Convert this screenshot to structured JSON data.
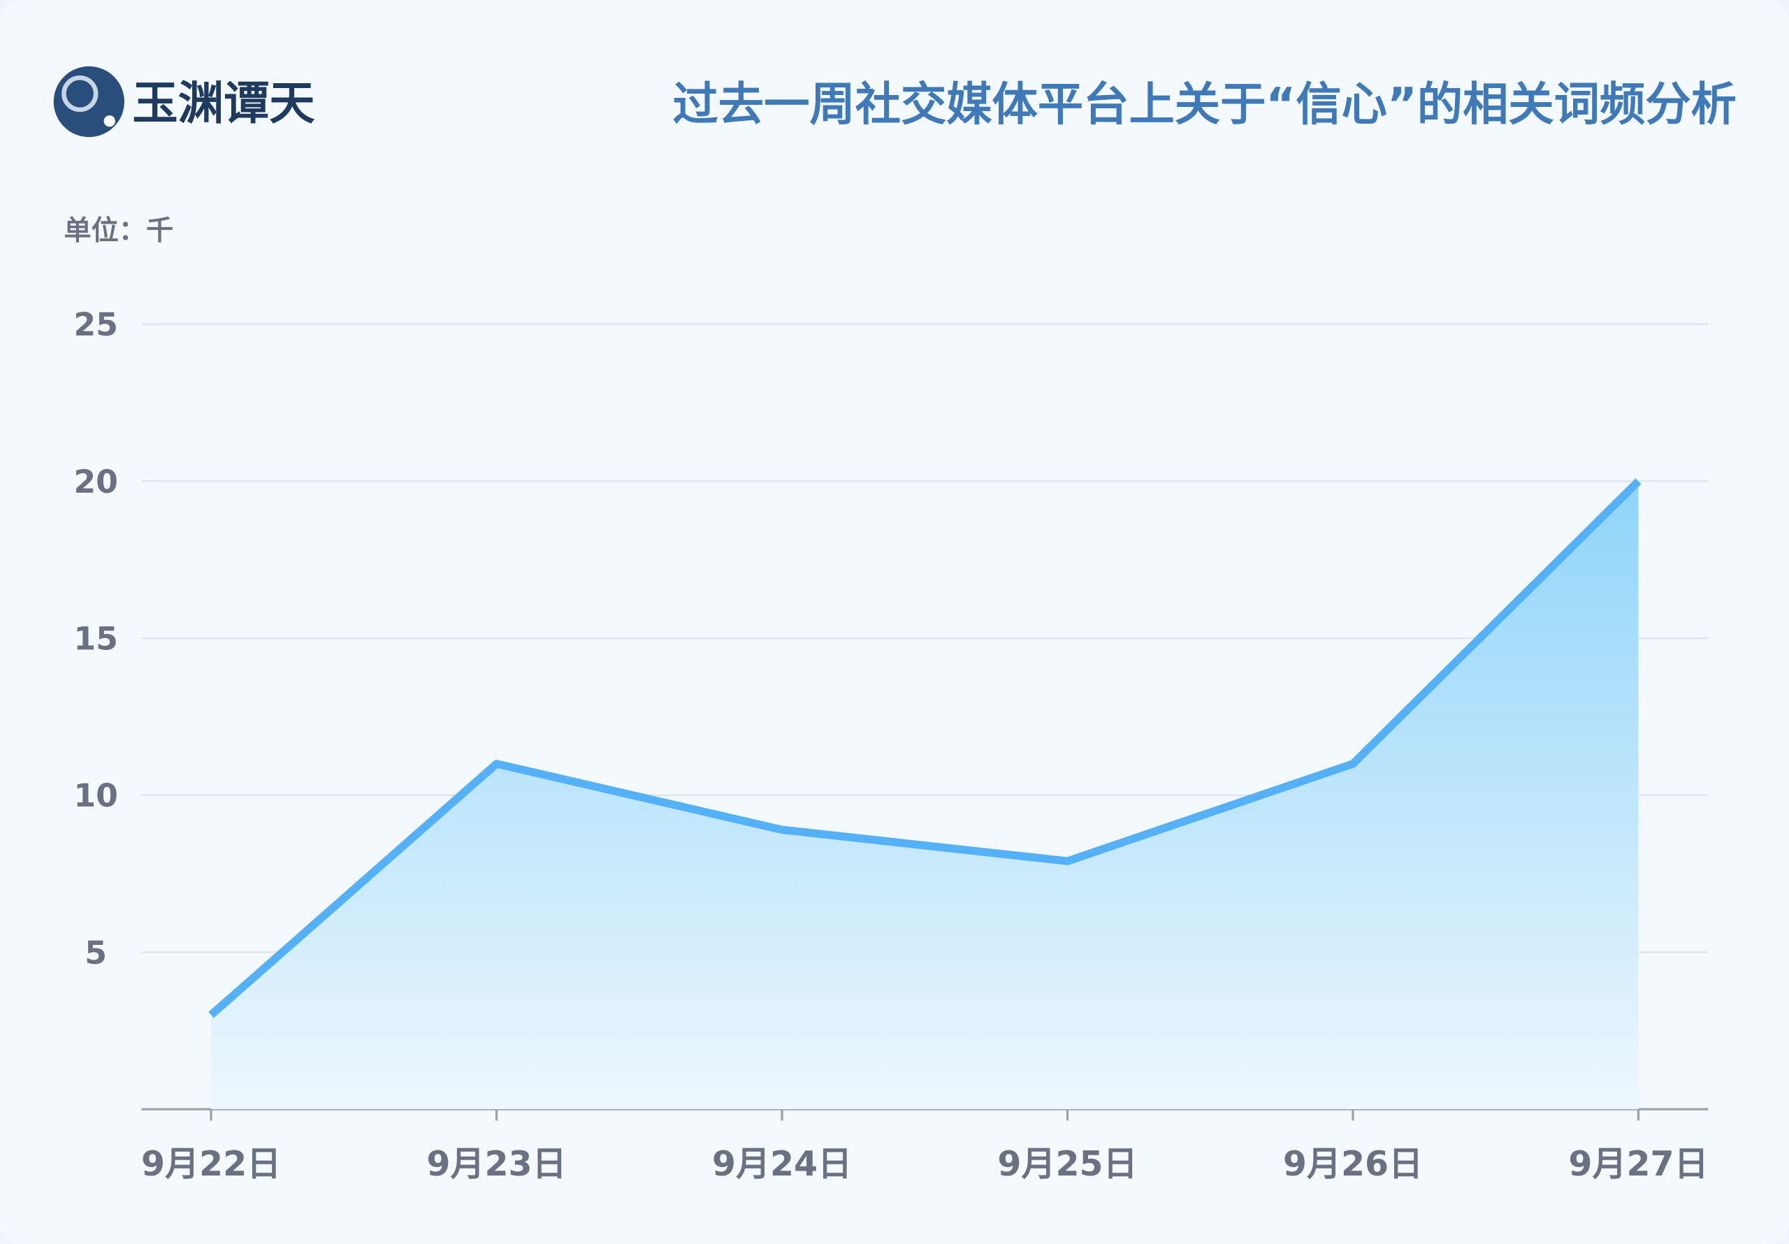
{
  "logo": "玉渊谭天",
  "chart_data": {
    "type": "area",
    "title": "过去一周社交媒体平台上关于“信心”的相关词频分析",
    "unit_label": "单位：千",
    "categories": [
      "9月22日",
      "9月23日",
      "9月24日",
      "9月25日",
      "9月26日",
      "9月27日"
    ],
    "series": [
      {
        "name": "信心",
        "color": "#55b1f7",
        "values": [
          3,
          11,
          8.9,
          7.9,
          11,
          20
        ]
      }
    ],
    "ylim": [
      0,
      25
    ],
    "yticks": [
      5,
      10,
      15,
      20,
      25
    ],
    "grid": true
  }
}
